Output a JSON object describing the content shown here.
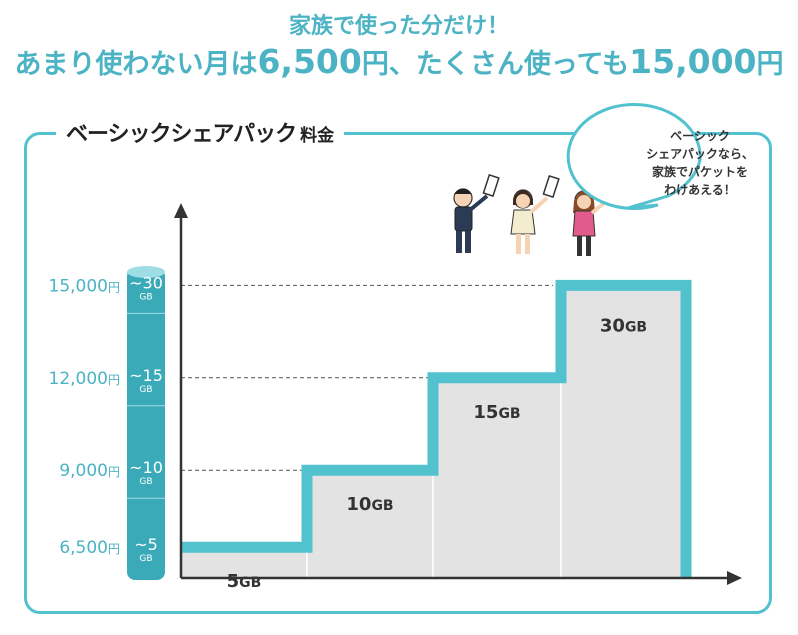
{
  "headline": {
    "line1": "家族で使った分だけ！",
    "line2_a": "あまり使わない月は",
    "line2_b": "6,500",
    "line2_c": "円、たくさん使っても",
    "line2_d": "15,000",
    "line2_e": "円"
  },
  "frame_title": {
    "main": "ベーシックシェアパック",
    "sub": "料金"
  },
  "bubble": {
    "lines": [
      "ベーシック",
      "シェアパックなら、",
      "家族でパケットを",
      "わけあえる！"
    ]
  },
  "colors": {
    "accent": "#4bb3c4",
    "frame": "#53c2cf",
    "bar": "#e3e3e3",
    "tube_dark": "#3aaab9",
    "tube_light": "#9fdde5"
  },
  "chart_data": {
    "type": "bar",
    "categories": [
      "5GB",
      "10GB",
      "15GB",
      "30GB"
    ],
    "values": [
      6500,
      9000,
      12000,
      15000
    ],
    "bar_labels": [
      {
        "num": "5",
        "unit": "GB"
      },
      {
        "num": "10",
        "unit": "GB"
      },
      {
        "num": "15",
        "unit": "GB"
      },
      {
        "num": "30",
        "unit": "GB"
      }
    ],
    "price_labels": [
      {
        "num": "6,500",
        "unit": "円",
        "gb": "~5",
        "gbunit": "GB",
        "value": 6500
      },
      {
        "num": "9,000",
        "unit": "円",
        "gb": "~10",
        "gbunit": "GB",
        "value": 9000
      },
      {
        "num": "12,000",
        "unit": "円",
        "gb": "~15",
        "gbunit": "GB",
        "value": 12000
      },
      {
        "num": "15,000",
        "unit": "円",
        "gb": "~30",
        "gbunit": "GB",
        "value": 15000
      }
    ],
    "ylim": [
      5500,
      15500
    ],
    "grid": "dashed"
  }
}
